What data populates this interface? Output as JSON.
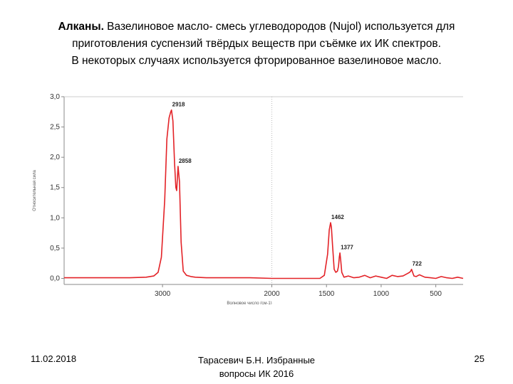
{
  "slide": {
    "title_bold": "Алканы.",
    "title_rest_line1": " Вазелиновое масло- смесь углеводородов (Nujol) используется для",
    "title_line2": "приготовления суспензий твёрдых веществ при съёмке их ИК спектров.",
    "title_line3": "В некоторых случаях используется фторированное вазелиновое масло."
  },
  "footer": {
    "date": "11.02.2018",
    "author_line1": "Тарасевич Б.Н. Избранные",
    "author_line2": "вопросы ИК 2016",
    "page_number": "25"
  },
  "colors": {
    "series": "#e32227",
    "axis": "#888888",
    "text": "#000000"
  },
  "chart_data": {
    "type": "line",
    "title": "",
    "xlabel": "Волновое число (см-1)",
    "ylabel": "Относительная сила",
    "xlim": [
      3900,
      250
    ],
    "ylim": [
      -0.1,
      3.0
    ],
    "x_reversed": true,
    "grid": false,
    "x_ticks": [
      3000,
      2000,
      1500,
      1000,
      500
    ],
    "x_tick_labels": [
      "3000",
      "2000",
      "1500",
      "1000",
      "500"
    ],
    "y_ticks": [
      0,
      0.5,
      1.0,
      1.5,
      2.0,
      2.5,
      3.0
    ],
    "y_tick_labels": [
      "0,0",
      "0,5",
      "1,0",
      "1,5",
      "2,0",
      "2,5",
      "3,0"
    ],
    "series": [
      {
        "x": [
          3900,
          3600,
          3300,
          3150,
          3080,
          3040,
          3010,
          2980,
          2960,
          2940,
          2925,
          2918,
          2905,
          2890,
          2878,
          2870,
          2858,
          2845,
          2830,
          2810,
          2780,
          2740,
          2700,
          2600,
          2400,
          2200,
          2000,
          1800,
          1700,
          1620,
          1560,
          1520,
          1490,
          1475,
          1462,
          1455,
          1445,
          1430,
          1415,
          1400,
          1390,
          1383,
          1377,
          1370,
          1360,
          1340,
          1300,
          1250,
          1200,
          1150,
          1100,
          1050,
          1000,
          950,
          900,
          850,
          800,
          760,
          740,
          730,
          722,
          712,
          700,
          680,
          650,
          600,
          550,
          500,
          450,
          400,
          350,
          300,
          250
        ],
        "y": [
          0.01,
          0.01,
          0.01,
          0.02,
          0.04,
          0.1,
          0.35,
          1.3,
          2.3,
          2.65,
          2.75,
          2.78,
          2.6,
          1.9,
          1.5,
          1.45,
          1.85,
          1.6,
          0.6,
          0.12,
          0.05,
          0.03,
          0.02,
          0.01,
          0.01,
          0.01,
          0.0,
          0.0,
          0.0,
          0.0,
          0.0,
          0.05,
          0.4,
          0.8,
          0.92,
          0.85,
          0.55,
          0.15,
          0.1,
          0.12,
          0.2,
          0.35,
          0.42,
          0.3,
          0.1,
          0.02,
          0.04,
          0.01,
          0.02,
          0.05,
          0.01,
          0.04,
          0.02,
          0.0,
          0.05,
          0.03,
          0.04,
          0.08,
          0.1,
          0.12,
          0.15,
          0.1,
          0.04,
          0.03,
          0.06,
          0.02,
          0.01,
          0.0,
          0.03,
          0.01,
          0.0,
          0.02,
          0.0
        ]
      }
    ],
    "annotations": [
      {
        "x": 2918,
        "y": 2.78,
        "text": "2918"
      },
      {
        "x": 2858,
        "y": 1.85,
        "text": "2858"
      },
      {
        "x": 1462,
        "y": 0.92,
        "text": "1462"
      },
      {
        "x": 1377,
        "y": 0.42,
        "text": "1377"
      },
      {
        "x": 722,
        "y": 0.15,
        "text": "722"
      }
    ]
  }
}
